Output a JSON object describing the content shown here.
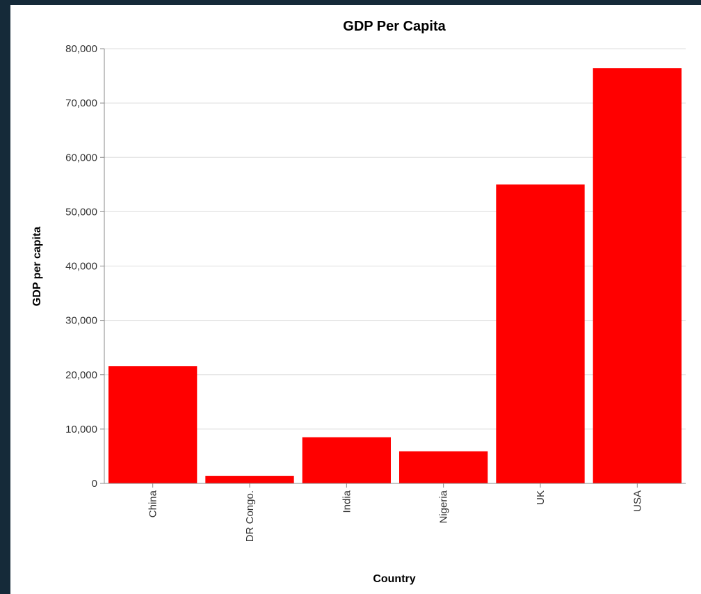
{
  "chart_data": {
    "type": "bar",
    "title": "GDP Per Capita",
    "xlabel": "Country",
    "ylabel": "GDP per capita",
    "categories": [
      "China",
      "DR Congo.",
      "India",
      "Nigeria",
      "UK",
      "USA"
    ],
    "values": [
      21600,
      1400,
      8500,
      5900,
      55000,
      76400
    ],
    "ylim": [
      0,
      80000
    ],
    "yticks": [
      0,
      10000,
      20000,
      30000,
      40000,
      50000,
      60000,
      70000,
      80000
    ],
    "ytick_labels": [
      "0",
      "10,000",
      "20,000",
      "30,000",
      "40,000",
      "50,000",
      "60,000",
      "70,000",
      "80,000"
    ],
    "bar_color": "#ff0000",
    "grid": true,
    "legend": "none"
  }
}
